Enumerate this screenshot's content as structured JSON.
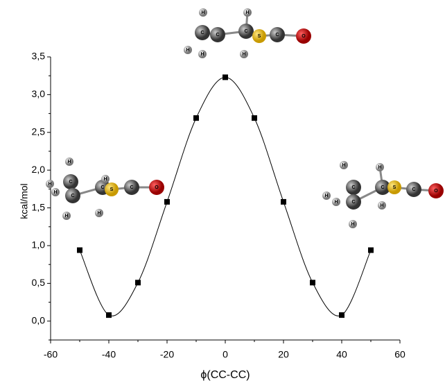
{
  "chart_data": {
    "type": "scatter",
    "x_label": "ϕ(CC-CC)",
    "y_label": "kcal/mol",
    "x": [
      -50,
      -40,
      -30,
      -20,
      -10,
      0,
      10,
      20,
      30,
      40,
      50
    ],
    "series": [
      {
        "color": "#000000",
        "values": [
          0.94,
          0.08,
          0.51,
          1.58,
          2.69,
          3.23,
          2.69,
          1.58,
          0.51,
          0.08,
          0.94
        ]
      }
    ],
    "xlim": [
      -60,
      60
    ],
    "xticks": [
      -60,
      -40,
      -20,
      0,
      20,
      40,
      60
    ],
    "ylim": [
      -0.25,
      3.5
    ],
    "yticks": [
      {
        "value": 0,
        "label": "0,0"
      },
      {
        "value": 0.5,
        "label": "0,5"
      },
      {
        "value": 1,
        "label": "1,0"
      },
      {
        "value": 1.5,
        "label": "1,5"
      },
      {
        "value": 2,
        "label": "2,0"
      },
      {
        "value": 2.5,
        "label": "2,5"
      },
      {
        "value": 3,
        "label": "3,0"
      },
      {
        "value": 3.5,
        "label": "3,5"
      }
    ]
  },
  "molecules": [
    {
      "atoms": [
        "H",
        "H",
        "H",
        "C",
        "C",
        "C",
        "H",
        "H",
        "S",
        "C",
        "O"
      ]
    },
    {
      "atoms": [
        "H",
        "H",
        "H",
        "H",
        "C",
        "C",
        "C",
        "H",
        "H",
        "S",
        "C",
        "O"
      ]
    },
    {
      "atoms": [
        "H",
        "H",
        "H",
        "H",
        "C",
        "C",
        "C",
        "H",
        "H",
        "S",
        "C",
        "O"
      ]
    }
  ]
}
